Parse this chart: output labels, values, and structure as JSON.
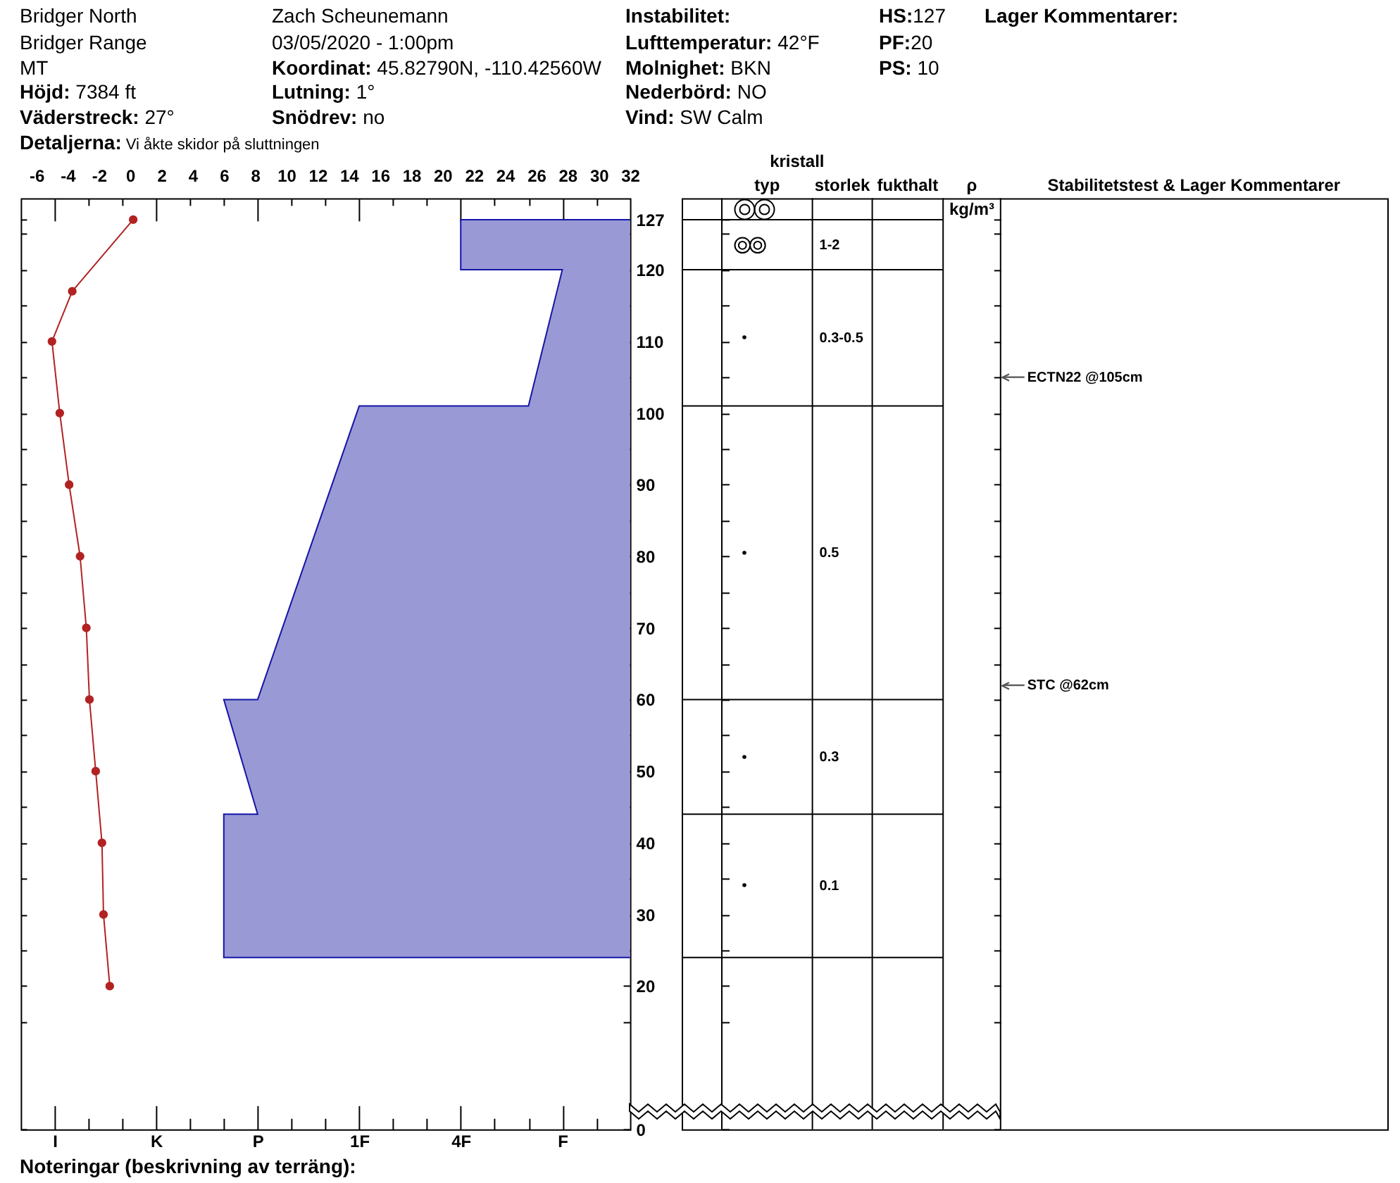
{
  "chart_data": {
    "type": "line",
    "annotations": [
      "Bridger North",
      "Zach Scheunemann",
      "Instabilitet:",
      "HS:127",
      "Lager Kommentarer:",
      "Bridger Range",
      "03/05/2020 - 1:00pm",
      "Lufttemperatur: 42°F",
      "PF:20",
      "MT",
      "Koordinat: 45.82790N, -110.42560W",
      "Molnighet: BKN",
      "PS: 10",
      "Höjd: 7384 ft",
      "Lutning: 1°",
      "Nederbörd: NO",
      "Väderstreck: 27°",
      "Snödrev: no",
      "Vind: SW Calm",
      "Detaljerna: Vi åkte skidor på sluttningen",
      "kristall",
      "typ",
      "storlek",
      "fukthalt",
      "ρ kg/m³",
      "Stabilitetstest & Lager Kommentarer",
      "1-2",
      "0.3-0.5",
      "0.5",
      "0.3",
      "0.1",
      "Noteringar (beskrivning av terräng):"
    ],
    "series": [
      {
        "type": "area",
        "color": "#9999d5",
        "x": [
          9,
          4,
          4,
          7,
          6,
          1,
          -2,
          -3,
          -2,
          -3,
          -3,
          9
        ],
        "values": [
          127,
          127,
          120,
          120,
          101,
          101,
          60,
          60,
          44,
          44,
          24,
          24
        ]
      },
      {
        "type": "line",
        "axis": "x2",
        "color": "#b22222",
        "marker": "circle",
        "x": [
          0.2,
          -3.7,
          -5,
          -4.5,
          -3.9,
          -3.2,
          -2.8,
          -2.6,
          -2.2,
          -1.8,
          -1.7,
          -1.3
        ],
        "values": [
          127,
          117,
          110,
          100,
          90,
          80,
          70,
          60,
          50,
          40,
          30,
          20
        ]
      }
    ],
    "xlim": [
      -9,
      9
    ],
    "xticks": [
      {
        "value": -8,
        "label": "I"
      },
      {
        "value": -7,
        "label": null
      },
      {
        "value": -6,
        "label": null
      },
      {
        "value": -5,
        "label": "K"
      },
      {
        "value": -4,
        "label": null
      },
      {
        "value": -3,
        "label": null
      },
      {
        "value": -2,
        "label": "P"
      },
      {
        "value": -1,
        "label": null
      },
      {
        "value": 0,
        "label": null
      },
      {
        "value": 1,
        "label": "1F"
      },
      {
        "value": 2,
        "label": null
      },
      {
        "value": 3,
        "label": null
      },
      {
        "value": 4,
        "label": "4F"
      },
      {
        "value": 5,
        "label": null
      },
      {
        "value": 6,
        "label": null
      },
      {
        "value": 7,
        "label": "F"
      },
      {
        "value": 8,
        "label": null
      }
    ],
    "x2lim": [
      -7,
      32
    ],
    "x2ticks": [
      -6,
      -4,
      -2,
      0,
      2,
      4,
      6,
      8,
      10,
      12,
      14,
      16,
      18,
      20,
      22,
      24,
      26,
      28,
      30,
      32
    ],
    "ylim": [
      0,
      130
    ],
    "yticks": [
      0,
      {
        "value": 15,
        "label": null
      },
      20,
      {
        "value": 25,
        "label": null
      },
      30,
      {
        "value": 35,
        "label": null
      },
      40,
      {
        "value": 45,
        "label": null
      },
      50,
      {
        "value": 55,
        "label": null
      },
      60,
      {
        "value": 65,
        "label": null
      },
      70,
      {
        "value": 75,
        "label": null
      },
      80,
      {
        "value": 85,
        "label": null
      },
      90,
      {
        "value": 95,
        "label": null
      },
      100,
      {
        "value": 105,
        "label": null
      },
      110,
      {
        "value": 115,
        "label": null
      },
      120,
      {
        "value": 125,
        "label": null
      },
      127
    ],
    "ref_lines": [
      {
        "axis": "y",
        "value": 105,
        "label": "ECTN22 @105cm"
      },
      {
        "axis": "y",
        "value": 62,
        "label": "STC @62cm"
      }
    ],
    "grid": false
  }
}
